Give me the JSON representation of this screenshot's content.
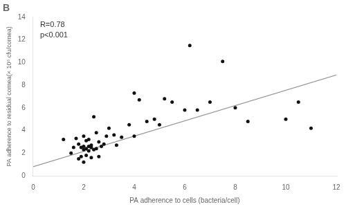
{
  "chart_data": {
    "type": "scatter",
    "title": "B",
    "xlabel": "PA adherence to cells (bacteria/cell)",
    "ylabel": "PA adherence to residual cornea(× 10⁶ cfu/cornea)",
    "annotation": "R=0.78\np<0.001",
    "series": [
      {
        "type": "scatter",
        "color": "#111111",
        "marker": "circle",
        "x": [
          1.2,
          1.5,
          1.6,
          1.7,
          1.8,
          1.8,
          1.9,
          1.9,
          2.0,
          2.0,
          2.0,
          2.0,
          2.1,
          2.1,
          2.1,
          2.2,
          2.2,
          2.2,
          2.3,
          2.3,
          2.3,
          2.4,
          2.4,
          2.5,
          2.5,
          2.6,
          2.6,
          2.7,
          2.8,
          2.9,
          3.0,
          3.2,
          3.3,
          3.5,
          3.8,
          4.0,
          4.0,
          4.2,
          4.5,
          4.8,
          5.0,
          5.2,
          5.5,
          6.0,
          6.2,
          6.5,
          7.0,
          7.5,
          8.0,
          8.5,
          10.0,
          10.5,
          11.0
        ],
        "values": [
          3.2,
          2.0,
          2.5,
          3.3,
          1.5,
          2.8,
          1.7,
          2.5,
          1.2,
          2.3,
          3.5,
          2.6,
          2.4,
          1.8,
          3.1,
          2.2,
          2.6,
          3.2,
          1.6,
          2.5,
          2.7,
          2.3,
          5.2,
          2.4,
          3.8,
          1.7,
          3.0,
          2.6,
          2.8,
          3.5,
          4.2,
          3.6,
          2.7,
          3.4,
          4.5,
          3.5,
          7.3,
          6.7,
          4.8,
          5.0,
          4.5,
          6.8,
          6.5,
          5.8,
          11.5,
          5.8,
          6.5,
          10.1,
          6.0,
          4.8,
          5.0,
          6.5,
          4.2
        ]
      },
      {
        "type": "line",
        "color": "#999999",
        "line_style": "solid",
        "x": [
          0,
          12
        ],
        "values": [
          0.8,
          8.9
        ]
      }
    ],
    "xlim": [
      0,
      12
    ],
    "xticks": [
      0,
      2,
      4,
      6,
      8,
      10,
      12
    ],
    "ylim": [
      0,
      14
    ],
    "yticks": [
      0,
      2,
      4,
      6,
      8,
      10,
      12,
      14
    ],
    "grid": false
  }
}
